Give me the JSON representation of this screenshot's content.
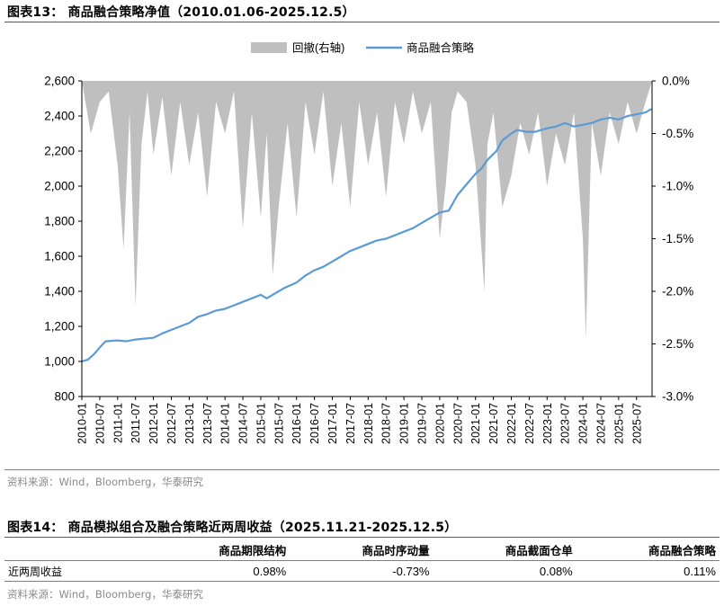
{
  "figure13": {
    "title": "图表13：  商品融合策略净值（2010.01.06-2025.12.5）",
    "source": "资料来源：Wind，Bloomberg，华泰研究"
  },
  "figure14": {
    "title": "图表14：  商品模拟组合及融合策略近两周收益（2025.11.21-2025.12.5）",
    "columns": [
      "",
      "商品期限结构",
      "商品时序动量",
      "商品截面仓单",
      "商品融合策略"
    ],
    "rows": [
      {
        "label": "近两周收益",
        "values": [
          "0.98%",
          "-0.73%",
          "0.08%",
          "0.11%"
        ]
      }
    ],
    "source": "资料来源：Wind，Bloomberg，华泰研究"
  },
  "colors": {
    "nav_line": "#5b9bd5",
    "drawdown_fill": "#bfbfbf",
    "axis": "#000000",
    "rule": "#7f7f7f",
    "source_text": "#8a8a8a"
  },
  "chart_data": {
    "type": "line",
    "series": [
      {
        "name": "回撤(右轴)",
        "kind": "area",
        "axis": "right",
        "x": [
          "2010-01",
          "2010-04",
          "2010-07",
          "2010-10",
          "2011-01",
          "2011-03",
          "2011-05",
          "2011-07",
          "2011-09",
          "2011-11",
          "2012-01",
          "2012-04",
          "2012-07",
          "2012-10",
          "2013-01",
          "2013-04",
          "2013-07",
          "2013-10",
          "2014-01",
          "2014-04",
          "2014-07",
          "2014-10",
          "2015-01",
          "2015-03",
          "2015-05",
          "2015-07",
          "2015-10",
          "2016-01",
          "2016-04",
          "2016-07",
          "2016-10",
          "2017-01",
          "2017-04",
          "2017-07",
          "2017-10",
          "2018-01",
          "2018-04",
          "2018-07",
          "2018-10",
          "2019-01",
          "2019-04",
          "2019-07",
          "2019-10",
          "2020-01",
          "2020-03",
          "2020-05",
          "2020-07",
          "2020-10",
          "2021-01",
          "2021-04",
          "2021-05",
          "2021-07",
          "2021-10",
          "2022-01",
          "2022-04",
          "2022-07",
          "2022-10",
          "2023-01",
          "2023-04",
          "2023-07",
          "2023-10",
          "2024-01",
          "2024-02",
          "2024-04",
          "2024-07",
          "2024-10",
          "2025-01",
          "2025-04",
          "2025-07",
          "2025-10",
          "2025-12"
        ],
        "values": [
          -0.002,
          -0.5,
          -0.2,
          -0.1,
          -0.8,
          -1.6,
          -0.3,
          -2.15,
          -0.6,
          -0.1,
          -0.7,
          -0.15,
          -0.9,
          -0.2,
          -0.8,
          -0.3,
          -1.1,
          -0.2,
          -0.5,
          -0.1,
          -1.4,
          -0.3,
          -1.3,
          -0.5,
          -1.85,
          -1.2,
          -0.4,
          -1.3,
          -0.2,
          -0.7,
          -0.1,
          -1.0,
          -0.4,
          -1.2,
          -0.2,
          -0.8,
          -0.3,
          -1.1,
          -0.2,
          -0.6,
          -0.1,
          -0.5,
          -0.2,
          -1.5,
          -1.0,
          -0.3,
          -0.1,
          -0.2,
          -0.8,
          -2.0,
          -0.6,
          -0.3,
          -1.2,
          -0.9,
          -0.4,
          -0.7,
          -0.3,
          -1.0,
          -0.5,
          -0.8,
          -0.3,
          -1.5,
          -2.45,
          -0.4,
          -0.9,
          -0.3,
          -0.6,
          -0.2,
          -0.5,
          -0.2,
          -0.02
        ]
      },
      {
        "name": "商品融合策略",
        "kind": "line",
        "axis": "left",
        "x": [
          "2010-01",
          "2010-03",
          "2010-05",
          "2010-07",
          "2010-09",
          "2011-01",
          "2011-04",
          "2011-07",
          "2011-10",
          "2012-01",
          "2012-04",
          "2012-07",
          "2012-10",
          "2013-01",
          "2013-04",
          "2013-07",
          "2013-10",
          "2014-01",
          "2014-04",
          "2014-07",
          "2014-10",
          "2015-01",
          "2015-03",
          "2015-06",
          "2015-09",
          "2016-01",
          "2016-04",
          "2016-07",
          "2016-10",
          "2017-01",
          "2017-04",
          "2017-07",
          "2017-10",
          "2018-01",
          "2018-04",
          "2018-07",
          "2018-10",
          "2019-01",
          "2019-04",
          "2019-07",
          "2019-10",
          "2020-01",
          "2020-04",
          "2020-07",
          "2020-10",
          "2021-01",
          "2021-03",
          "2021-05",
          "2021-08",
          "2021-10",
          "2022-01",
          "2022-03",
          "2022-06",
          "2022-09",
          "2023-01",
          "2023-04",
          "2023-07",
          "2023-10",
          "2024-01",
          "2024-04",
          "2024-07",
          "2024-10",
          "2025-01",
          "2025-04",
          "2025-07",
          "2025-10",
          "2025-12"
        ],
        "values": [
          1000,
          1010,
          1040,
          1080,
          1115,
          1120,
          1115,
          1125,
          1130,
          1135,
          1160,
          1180,
          1200,
          1220,
          1255,
          1270,
          1290,
          1300,
          1320,
          1340,
          1360,
          1380,
          1360,
          1390,
          1420,
          1450,
          1490,
          1520,
          1540,
          1570,
          1600,
          1630,
          1650,
          1670,
          1690,
          1700,
          1720,
          1740,
          1760,
          1790,
          1820,
          1850,
          1860,
          1950,
          2010,
          2070,
          2100,
          2150,
          2200,
          2260,
          2300,
          2320,
          2310,
          2310,
          2330,
          2340,
          2360,
          2340,
          2350,
          2360,
          2380,
          2390,
          2380,
          2400,
          2410,
          2420,
          2440
        ]
      }
    ],
    "x_ticks": [
      "2010-01",
      "2010-07",
      "2011-01",
      "2011-07",
      "2012-01",
      "2012-07",
      "2013-01",
      "2013-07",
      "2014-01",
      "2014-07",
      "2015-01",
      "2015-07",
      "2016-01",
      "2016-07",
      "2017-01",
      "2017-07",
      "2018-01",
      "2018-07",
      "2019-01",
      "2019-07",
      "2020-01",
      "2020-07",
      "2021-01",
      "2021-07",
      "2022-01",
      "2022-07",
      "2023-01",
      "2023-07",
      "2024-01",
      "2024-07",
      "2025-01",
      "2025-07"
    ],
    "y_left": {
      "ticks": [
        "800",
        "1,000",
        "1,200",
        "1,400",
        "1,600",
        "1,800",
        "2,000",
        "2,200",
        "2,400",
        "2,600"
      ],
      "lim": [
        800,
        2600
      ]
    },
    "y_right": {
      "ticks": [
        "-3.0%",
        "-2.5%",
        "-2.0%",
        "-1.5%",
        "-1.0%",
        "-0.5%",
        "0.0%"
      ],
      "lim": [
        -3.0,
        0.0
      ]
    },
    "legend_position": "top-center",
    "grid": false
  }
}
